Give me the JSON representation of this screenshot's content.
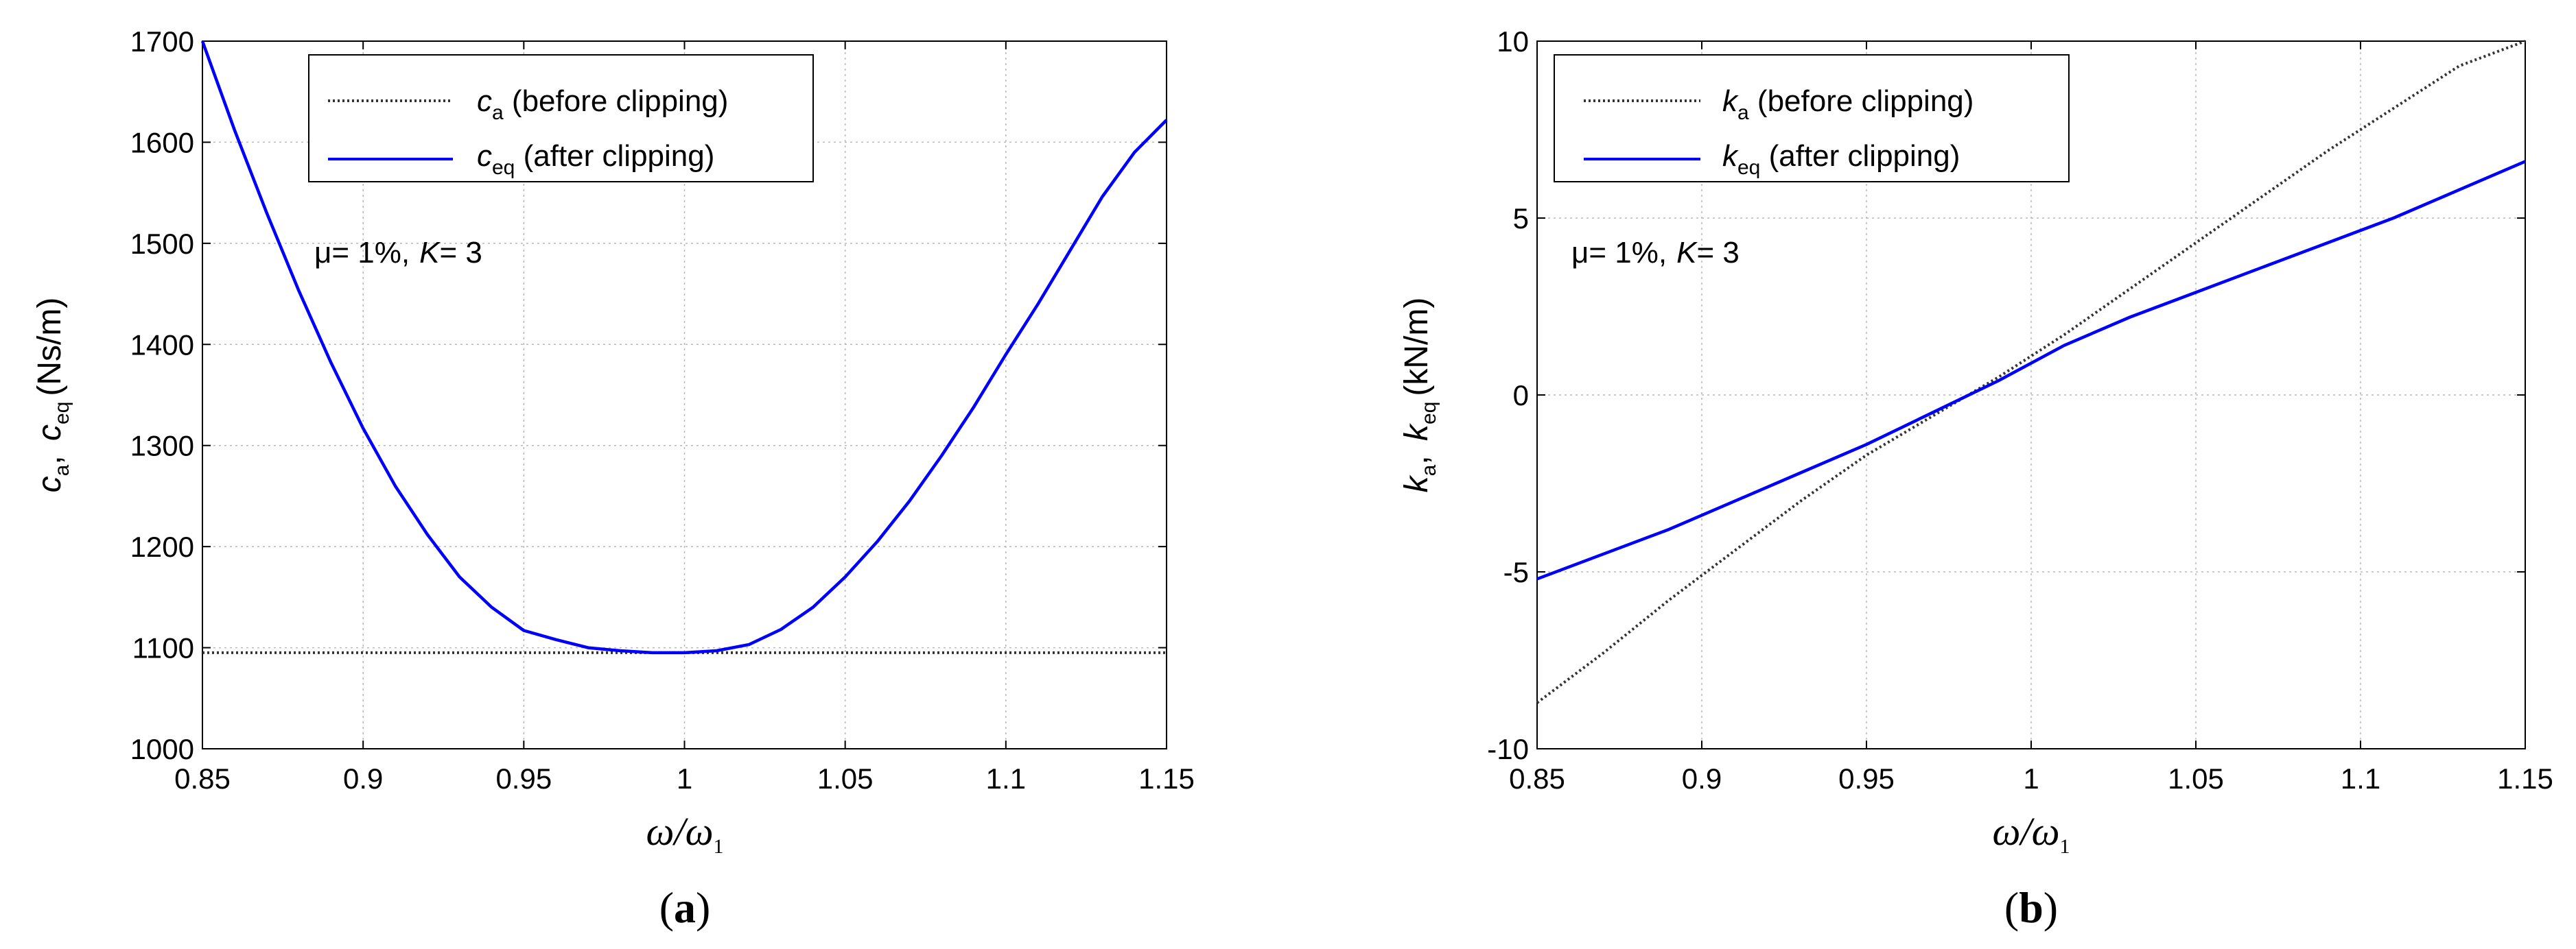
{
  "chart_data": [
    {
      "type": "line",
      "panel_label": "a",
      "ylabel": {
        "sym1": "c",
        "sub1": "a",
        "sym2": "c",
        "sub2": "eq",
        "unit": "(Ns/m)"
      },
      "xlabel": {
        "num": "ω",
        "den": "ω",
        "den_sub": "1"
      },
      "xlim": [
        0.85,
        1.15
      ],
      "ylim": [
        1000,
        1700
      ],
      "xticks": [
        0.85,
        0.9,
        0.95,
        1,
        1.05,
        1.1,
        1.15
      ],
      "xtick_labels": [
        "0.85",
        "0.9",
        "0.95",
        "1",
        "1.05",
        "1.1",
        "1.15"
      ],
      "yticks": [
        1000,
        1100,
        1200,
        1300,
        1400,
        1500,
        1600,
        1700
      ],
      "ytick_labels": [
        "1000",
        "1100",
        "1200",
        "1300",
        "1400",
        "1500",
        "1600",
        "1700"
      ],
      "grid": true,
      "legend_position": "top-center",
      "annotation": {
        "mu": "μ= 1%,",
        "K_sym": "K",
        "K_val": "= 3"
      },
      "x": [
        0.85,
        0.86,
        0.87,
        0.88,
        0.89,
        0.9,
        0.91,
        0.92,
        0.93,
        0.94,
        0.95,
        0.96,
        0.97,
        0.98,
        0.99,
        1.0,
        1.01,
        1.02,
        1.03,
        1.04,
        1.05,
        1.06,
        1.07,
        1.08,
        1.09,
        1.1,
        1.11,
        1.12,
        1.13,
        1.14,
        1.15
      ],
      "series": [
        {
          "name_sym": "c",
          "name_sub": "a",
          "name_text": " (before clipping)",
          "style": "dotted",
          "color": "#333333",
          "values": [
            1095,
            1095,
            1095,
            1095,
            1095,
            1095,
            1095,
            1095,
            1095,
            1095,
            1095,
            1095,
            1095,
            1095,
            1095,
            1095,
            1095,
            1095,
            1095,
            1095,
            1095,
            1095,
            1095,
            1095,
            1095,
            1095,
            1095,
            1095,
            1095,
            1095,
            1095
          ]
        },
        {
          "name_sym": "c",
          "name_sub": "eq",
          "name_text": " (after clipping)",
          "style": "solid",
          "color": "#0000ff",
          "values": [
            1700,
            1612,
            1530,
            1453,
            1382,
            1317,
            1260,
            1212,
            1170,
            1140,
            1117,
            1108,
            1100,
            1097,
            1095,
            1095,
            1097,
            1103,
            1118,
            1140,
            1170,
            1205,
            1245,
            1290,
            1338,
            1390,
            1440,
            1493,
            1546,
            1590,
            1622
          ]
        }
      ]
    },
    {
      "type": "line",
      "panel_label": "b",
      "ylabel": {
        "sym1": "k",
        "sub1": "a",
        "sym2": "k",
        "sub2": "eq",
        "unit": "(kN/m)"
      },
      "xlabel": {
        "num": "ω",
        "den": "ω",
        "den_sub": "1"
      },
      "xlim": [
        0.85,
        1.15
      ],
      "ylim": [
        -10,
        10
      ],
      "xticks": [
        0.85,
        0.9,
        0.95,
        1,
        1.05,
        1.1,
        1.15
      ],
      "xtick_labels": [
        "0.85",
        "0.9",
        "0.95",
        "1",
        "1.05",
        "1.1",
        "1.15"
      ],
      "yticks": [
        -10,
        -5,
        0,
        5,
        10
      ],
      "ytick_labels": [
        "-10",
        "-5",
        "0",
        "5",
        "10"
      ],
      "grid": true,
      "legend_position": "top-left",
      "annotation": {
        "mu": "μ= 1%,",
        "K_sym": "K",
        "K_val": "= 3"
      },
      "x": [
        0.85,
        0.87,
        0.89,
        0.91,
        0.93,
        0.95,
        0.97,
        0.99,
        1.01,
        1.03,
        1.05,
        1.07,
        1.09,
        1.11,
        1.13,
        1.15
      ],
      "series": [
        {
          "name_sym": "k",
          "name_sub": "a",
          "name_text": " (before clipping)",
          "style": "dotted",
          "color": "#333333",
          "values": [
            -8.7,
            -7.3,
            -5.8,
            -4.4,
            -3.0,
            -1.7,
            -0.6,
            0.5,
            1.7,
            3.0,
            4.3,
            5.6,
            6.9,
            8.1,
            9.3,
            10.5
          ]
        },
        {
          "name_sym": "k",
          "name_sub": "eq",
          "name_text": " (after clipping)",
          "style": "solid",
          "color": "#0000ff",
          "values": [
            -5.2,
            -4.5,
            -3.8,
            -3.0,
            -2.2,
            -1.4,
            -0.5,
            0.4,
            1.4,
            2.2,
            2.9,
            3.6,
            4.3,
            5.0,
            5.8,
            6.6
          ]
        }
      ]
    }
  ]
}
